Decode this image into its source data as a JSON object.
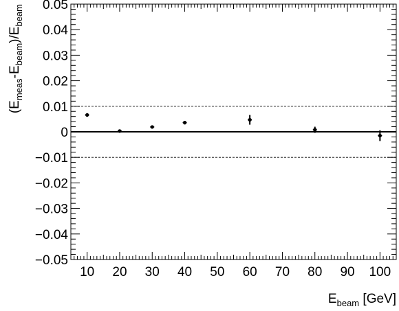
{
  "chart_data": {
    "type": "scatter",
    "xlabel": {
      "main": "E",
      "sub": "beam",
      "unit": " [GeV]"
    },
    "ylabel": {
      "p1": "(E",
      "s1": "meas",
      "p2": "-E",
      "s2": "beam",
      "p3": ")/E",
      "s3": "beam"
    },
    "xlim": [
      5,
      105
    ],
    "ylim": [
      -0.05,
      0.05
    ],
    "x_ticks": [
      10,
      20,
      30,
      40,
      50,
      60,
      70,
      80,
      90,
      100
    ],
    "x_tick_labels": [
      "10",
      "20",
      "30",
      "40",
      "50",
      "60",
      "70",
      "80",
      "90",
      "100"
    ],
    "y_ticks": [
      0.05,
      0.04,
      0.03,
      0.02,
      0.01,
      0,
      -0.01,
      -0.02,
      -0.03,
      -0.04,
      -0.05
    ],
    "y_tick_labels": [
      "0.05",
      "0.04",
      "0.03",
      "0.02",
      "0.01",
      "0",
      "−0.01",
      "−0.02",
      "−0.03",
      "−0.04",
      "−0.05"
    ],
    "reference_lines": [
      {
        "y": 0,
        "style": "solid"
      },
      {
        "y": 0.01,
        "style": "dashed"
      },
      {
        "y": -0.01,
        "style": "dashed"
      }
    ],
    "series": [
      {
        "x": [
          10,
          20,
          30,
          40,
          60,
          80,
          100
        ],
        "y": [
          0.0066,
          0.0003,
          0.0019,
          0.0036,
          0.0047,
          0.0008,
          -0.0015
        ],
        "yerr": [
          0.0007,
          0.0004,
          0.0006,
          0.0007,
          0.0019,
          0.0012,
          0.0021
        ],
        "color": "#000000"
      }
    ]
  }
}
